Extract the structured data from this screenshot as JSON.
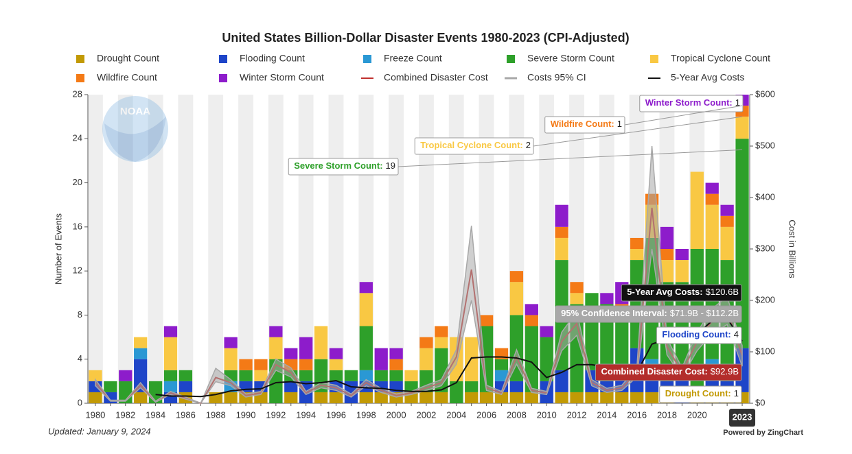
{
  "chart_data": {
    "type": "bar",
    "title": "United States Billion-Dollar Disaster Events 1980-2023 (CPI-Adjusted)",
    "y_label": "Number of Events",
    "y2_label": "Cost in Billions",
    "logo": "NOAA",
    "footnote": "Updated: January 9, 2024",
    "credit": "Powered by ZingChart",
    "categories": [
      "1980",
      null,
      "1982",
      null,
      "1984",
      null,
      "1986",
      null,
      "1988",
      null,
      "1990",
      null,
      "1992",
      null,
      "1994",
      null,
      "1996",
      null,
      "1998",
      null,
      "2000",
      null,
      "2002",
      null,
      "2004",
      null,
      "2006",
      null,
      "2008",
      null,
      "2010",
      null,
      "2012",
      null,
      "2014",
      null,
      "2016",
      null,
      "2018",
      null,
      "2020",
      null,
      null,
      "2023"
    ],
    "ylim": [
      0,
      28
    ],
    "yticks": [
      0,
      4,
      8,
      12,
      16,
      20,
      24,
      28
    ],
    "y2lim": [
      0,
      600
    ],
    "y2ticks": [
      {
        "value": 0,
        "label": "$0"
      },
      {
        "value": 100,
        "label": "$100"
      },
      {
        "value": 200,
        "label": "$200"
      },
      {
        "value": 300,
        "label": "$300"
      },
      {
        "value": 400,
        "label": "$400"
      },
      {
        "value": 500,
        "label": "$500"
      },
      {
        "value": 600,
        "label": "$600"
      }
    ],
    "grid": false,
    "stacked": true,
    "series": [
      {
        "name": "Drought Count",
        "type": "bar",
        "color": "#c29a05",
        "values": [
          1,
          0,
          0,
          1,
          0,
          0,
          1,
          0,
          1,
          1,
          1,
          1,
          0,
          1,
          0,
          1,
          1,
          0,
          1,
          1,
          1,
          1,
          1,
          1,
          0,
          1,
          1,
          1,
          1,
          1,
          0,
          1,
          1,
          1,
          1,
          1,
          1,
          1,
          1,
          0,
          1,
          1,
          1,
          1
        ]
      },
      {
        "name": "Flooding Count",
        "type": "bar",
        "color": "#1e45c8",
        "values": [
          1,
          1,
          0,
          3,
          0,
          1,
          1,
          0,
          0,
          0,
          1,
          1,
          0,
          1,
          2,
          0,
          1,
          2,
          1,
          1,
          1,
          0,
          0,
          0,
          0,
          0,
          0,
          1,
          1,
          0,
          2,
          2,
          0,
          2,
          1,
          2,
          4,
          2,
          1,
          3,
          0,
          2,
          1,
          4
        ]
      },
      {
        "name": "Freeze Count",
        "type": "bar",
        "color": "#2a98d4",
        "values": [
          0,
          0,
          0,
          1,
          0,
          1,
          0,
          0,
          0,
          1,
          0,
          0,
          0,
          0,
          0,
          0,
          0,
          0,
          1,
          0,
          0,
          0,
          0,
          0,
          0,
          0,
          0,
          1,
          0,
          0,
          0,
          0,
          0,
          0,
          0,
          0,
          0,
          1,
          0,
          0,
          0,
          1,
          0,
          0
        ]
      },
      {
        "name": "Severe Storm Count",
        "type": "bar",
        "color": "#2ea02a",
        "values": [
          0,
          1,
          2,
          0,
          2,
          1,
          1,
          0,
          0,
          1,
          1,
          0,
          4,
          1,
          1,
          3,
          1,
          1,
          4,
          1,
          1,
          1,
          2,
          4,
          2,
          1,
          6,
          1,
          6,
          6,
          4,
          10,
          8,
          7,
          7,
          5,
          8,
          11,
          9,
          8,
          13,
          10,
          11,
          19
        ]
      },
      {
        "name": "Tropical Cyclone Count",
        "type": "bar",
        "color": "#f9c843",
        "values": [
          1,
          0,
          0,
          1,
          0,
          3,
          0,
          0,
          0,
          2,
          0,
          1,
          2,
          0,
          0,
          3,
          1,
          0,
          3,
          0,
          0,
          1,
          2,
          1,
          4,
          4,
          0,
          0,
          3,
          0,
          0,
          2,
          1,
          0,
          0,
          0,
          1,
          3,
          2,
          2,
          7,
          4,
          3,
          2
        ]
      },
      {
        "name": "Wildfire Count",
        "type": "bar",
        "color": "#f47a16",
        "values": [
          0,
          0,
          0,
          0,
          0,
          0,
          0,
          0,
          0,
          0,
          1,
          1,
          0,
          1,
          1,
          0,
          0,
          0,
          0,
          0,
          1,
          0,
          1,
          1,
          0,
          0,
          1,
          1,
          1,
          1,
          0,
          1,
          1,
          0,
          0,
          1,
          1,
          1,
          1,
          0,
          0,
          1,
          1,
          1
        ]
      },
      {
        "name": "Winter Storm Count",
        "type": "bar",
        "color": "#8d1ccb",
        "values": [
          0,
          0,
          1,
          0,
          0,
          1,
          0,
          0,
          0,
          1,
          0,
          0,
          1,
          1,
          2,
          0,
          1,
          0,
          1,
          2,
          1,
          0,
          0,
          0,
          0,
          0,
          0,
          0,
          0,
          1,
          1,
          2,
          0,
          0,
          1,
          2,
          0,
          0,
          2,
          1,
          0,
          1,
          1,
          1
        ]
      },
      {
        "name": "Combined Disaster Cost",
        "type": "line",
        "axis": "y2",
        "color": "#c0302e",
        "values": [
          40,
          5,
          5,
          35,
          3,
          20,
          10,
          0,
          50,
          40,
          15,
          20,
          75,
          60,
          20,
          35,
          30,
          15,
          40,
          25,
          15,
          20,
          30,
          40,
          90,
          260,
          30,
          20,
          90,
          25,
          20,
          120,
          155,
          40,
          25,
          30,
          60,
          380,
          110,
          60,
          120,
          160,
          180,
          92.9
        ]
      },
      {
        "name": "Costs 95% CI",
        "type": "area",
        "axis": "y2",
        "color": "#a8a8a8",
        "low": [
          34,
          4,
          4,
          30,
          2,
          17,
          8,
          0,
          42,
          34,
          12,
          17,
          64,
          51,
          17,
          30,
          25,
          12,
          34,
          21,
          12,
          17,
          25,
          34,
          76,
          200,
          25,
          17,
          76,
          21,
          17,
          102,
          132,
          34,
          21,
          25,
          51,
          300,
          94,
          51,
          102,
          136,
          153,
          71.9
        ],
        "high": [
          46,
          6,
          6,
          40,
          4,
          23,
          12,
          0,
          68,
          46,
          18,
          23,
          86,
          69,
          23,
          40,
          35,
          18,
          46,
          29,
          18,
          23,
          35,
          46,
          104,
          345,
          35,
          23,
          104,
          29,
          23,
          138,
          178,
          46,
          29,
          35,
          69,
          500,
          126,
          69,
          138,
          184,
          207,
          112.2
        ]
      },
      {
        "name": "5-Year Avg Costs",
        "type": "line",
        "axis": "y2",
        "color": "#111111",
        "values": [
          null,
          null,
          null,
          null,
          17,
          14,
          14,
          13,
          17,
          24,
          27,
          28,
          40,
          42,
          38,
          40,
          44,
          32,
          30,
          29,
          25,
          23,
          23,
          26,
          40,
          88,
          90,
          90,
          88,
          80,
          50,
          60,
          75,
          75,
          70,
          65,
          60,
          115,
          125,
          125,
          135,
          160,
          165,
          120.6
        ]
      }
    ],
    "tooltips": [
      {
        "label": "Winter Storm Count:",
        "text": "1",
        "color": "#8d1ccb",
        "background": "#ffffff"
      },
      {
        "label": "Wildfire Count:",
        "text": "1",
        "color": "#f47a16",
        "background": "#ffffff"
      },
      {
        "label": "Tropical Cyclone Count:",
        "text": "2",
        "color": "#f9c843",
        "background": "#ffffff"
      },
      {
        "label": "Severe Storm Count:",
        "text": "19",
        "color": "#2ea02a",
        "background": "#ffffff"
      },
      {
        "label": "5-Year Avg Costs:",
        "text": "$120.6B",
        "color": "#ffffff",
        "background": "#111111"
      },
      {
        "label": "95% Confidence Interval:",
        "text": "$71.9B - $112.2B",
        "color": "#ffffff",
        "background": "#a8a8a8"
      },
      {
        "label": "Flooding Count:",
        "text": "4",
        "color": "#1e45c8",
        "background": "#ffffff"
      },
      {
        "label": "Combined Disaster Cost:",
        "text": "$92.9B",
        "color": "#ffffff",
        "background": "#b32d2b"
      },
      {
        "label": "Drought Count:",
        "text": "1",
        "color": "#c29a05",
        "background": "#ffffff"
      }
    ]
  }
}
